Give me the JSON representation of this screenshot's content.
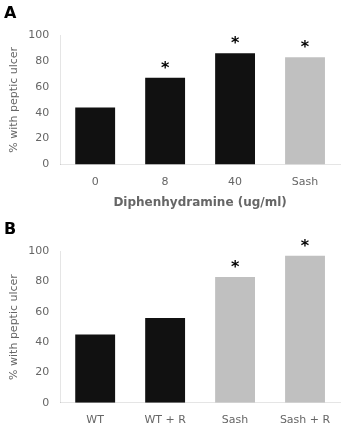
{
  "chart_data": [
    {
      "type": "bar",
      "title": "A",
      "categories": [
        "0",
        "8",
        "40",
        "Sash"
      ],
      "values": [
        44,
        67,
        86,
        83
      ],
      "colors": [
        "#111111",
        "#111111",
        "#111111",
        "#c0c0c0"
      ],
      "xlabel": "Diphenhydramine (ug/ml)",
      "ylabel": "% with peptic ulcer",
      "ylim": [
        0,
        100
      ],
      "yticks": [
        0,
        20,
        40,
        60,
        80,
        100
      ],
      "grid": false,
      "annotations": [
        {
          "x": "8",
          "text": "*"
        },
        {
          "x": "40",
          "text": "*"
        },
        {
          "x": "Sash",
          "text": "*"
        }
      ]
    },
    {
      "type": "bar",
      "title": "B",
      "categories": [
        "WT",
        "WT + R",
        "Sash",
        "Sash + R"
      ],
      "values": [
        45,
        56,
        83,
        97
      ],
      "colors": [
        "#111111",
        "#111111",
        "#c0c0c0",
        "#c0c0c0"
      ],
      "ylabel": "% with peptic ulcer",
      "ylim": [
        0,
        100
      ],
      "yticks": [
        0,
        20,
        40,
        60,
        80,
        100
      ],
      "grid": false,
      "annotations": [
        {
          "x": "Sash",
          "text": "*"
        },
        {
          "x": "Sash + R",
          "text": "*"
        }
      ]
    }
  ]
}
